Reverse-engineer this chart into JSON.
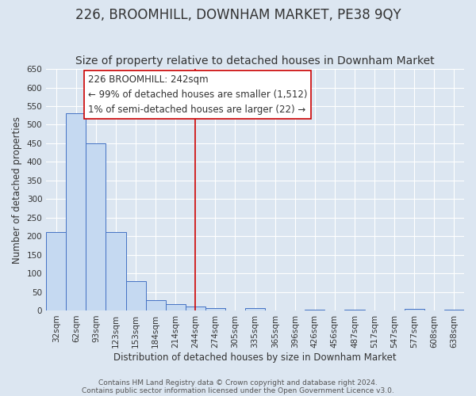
{
  "title": "226, BROOMHILL, DOWNHAM MARKET, PE38 9QY",
  "subtitle": "Size of property relative to detached houses in Downham Market",
  "xlabel": "Distribution of detached houses by size in Downham Market",
  "ylabel": "Number of detached properties",
  "footer_line1": "Contains HM Land Registry data © Crown copyright and database right 2024.",
  "footer_line2": "Contains public sector information licensed under the Open Government Licence v3.0.",
  "bin_labels": [
    "32sqm",
    "62sqm",
    "93sqm",
    "123sqm",
    "153sqm",
    "184sqm",
    "214sqm",
    "244sqm",
    "274sqm",
    "305sqm",
    "335sqm",
    "365sqm",
    "396sqm",
    "426sqm",
    "456sqm",
    "487sqm",
    "517sqm",
    "547sqm",
    "577sqm",
    "608sqm",
    "638sqm"
  ],
  "bar_values": [
    210,
    530,
    450,
    212,
    78,
    27,
    16,
    10,
    7,
    0,
    6,
    0,
    0,
    2,
    0,
    3,
    0,
    0,
    4,
    0,
    3
  ],
  "bar_color": "#c5d9f1",
  "bar_edge_color": "#4472c4",
  "vline_x": 7,
  "vline_color": "#cc0000",
  "ylim": [
    0,
    650
  ],
  "yticks": [
    0,
    50,
    100,
    150,
    200,
    250,
    300,
    350,
    400,
    450,
    500,
    550,
    600,
    650
  ],
  "annotation_title": "226 BROOMHILL: 242sqm",
  "annotation_line1": "← 99% of detached houses are smaller (1,512)",
  "annotation_line2": "1% of semi-detached houses are larger (22) →",
  "annotation_box_color": "#ffffff",
  "annotation_box_edge": "#cc0000",
  "bg_color": "#dce6f1",
  "plot_bg_color": "#dce6f1",
  "title_fontsize": 12,
  "subtitle_fontsize": 10,
  "label_fontsize": 8.5,
  "tick_fontsize": 7.5,
  "annotation_fontsize": 8.5,
  "footer_fontsize": 6.5
}
